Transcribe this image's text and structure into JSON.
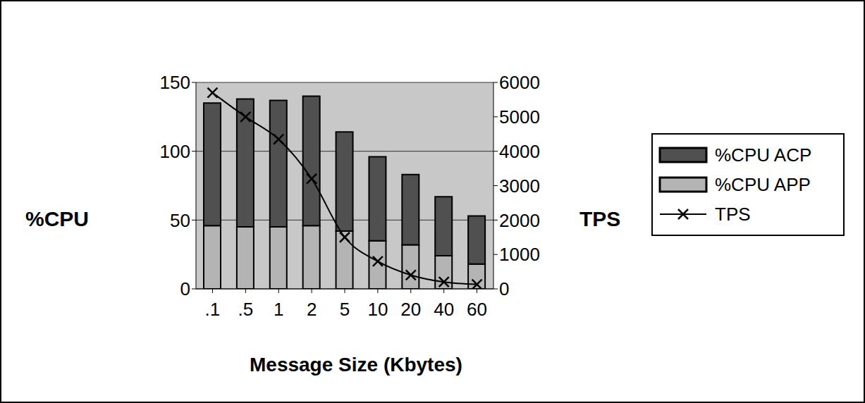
{
  "chart_data": {
    "type": "bar",
    "stacked": true,
    "x_label": "Message Size (Kbytes)",
    "y_label": "%CPU",
    "y2_label": "TPS",
    "categories": [
      ".1",
      ".5",
      "1",
      "2",
      "5",
      "10",
      "20",
      "40",
      "60"
    ],
    "series": [
      {
        "name": "%CPU APP",
        "color": "#b4b4b4",
        "values": [
          46,
          45,
          45,
          46,
          42,
          35,
          32,
          24,
          18
        ]
      },
      {
        "name": "%CPU ACP",
        "color": "#505050",
        "values": [
          89,
          93,
          92,
          94,
          72,
          61,
          51,
          43,
          35
        ]
      },
      {
        "name": "TPS",
        "type": "line",
        "axis": "y2",
        "color": "#000000",
        "marker": "x",
        "values": [
          5700,
          5000,
          4350,
          3200,
          1500,
          800,
          400,
          200,
          130
        ]
      }
    ],
    "ylim": [
      0,
      150
    ],
    "yticks": [
      0,
      50,
      100,
      150
    ],
    "y2lim": [
      0,
      6000
    ],
    "y2ticks": [
      0,
      1000,
      2000,
      3000,
      4000,
      5000,
      6000
    ],
    "grid": true,
    "legend": "right"
  }
}
